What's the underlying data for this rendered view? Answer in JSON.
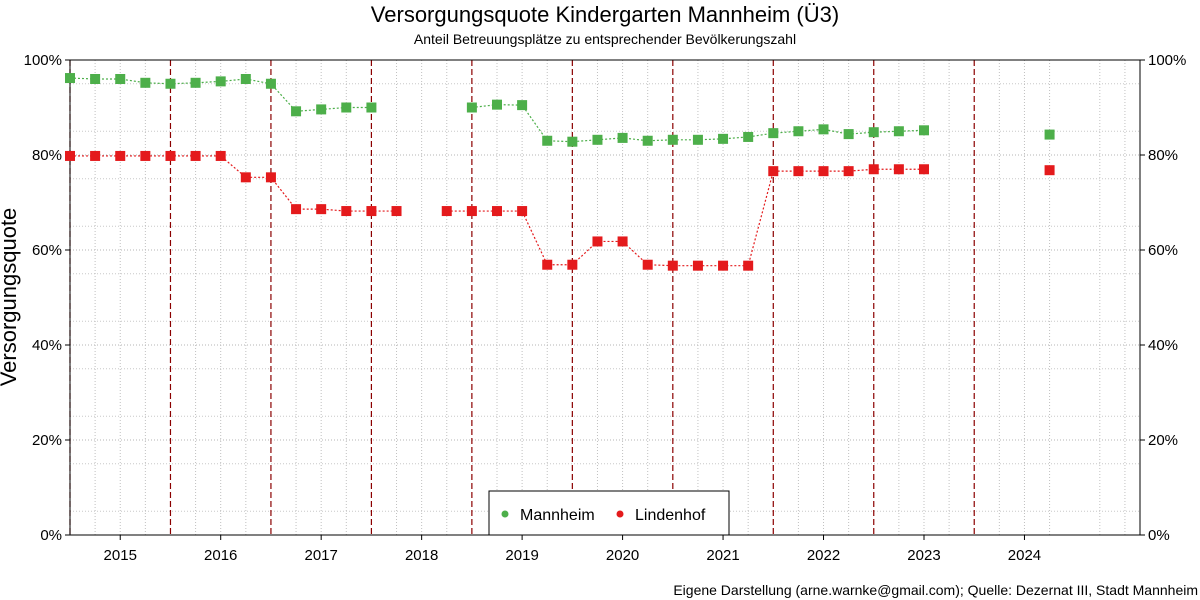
{
  "chart_data": {
    "type": "line",
    "title": "Versorgungsquote Kindergarten Mannheim (Ü3)",
    "subtitle": "Anteil Betreuungsplätze zu entsprechender Bevölkerungszahl",
    "ylabel": "Versorgungsquote",
    "xlabel": "",
    "caption": "Eigene Darstellung (arne.warnke@gmail.com); Quelle: Dezernat III, Stadt Mannheim",
    "xlim": [
      2014.5,
      2025.15
    ],
    "ylim": [
      0,
      100
    ],
    "x_ticks": [
      2015,
      2016,
      2017,
      2018,
      2019,
      2020,
      2021,
      2022,
      2023,
      2024
    ],
    "x_tick_labels": [
      "2015",
      "2016",
      "2017",
      "2018",
      "2019",
      "2020",
      "2021",
      "2022",
      "2023",
      "2024"
    ],
    "y_ticks": [
      0,
      20,
      40,
      60,
      80,
      100
    ],
    "y_tick_labels": [
      "0%",
      "20%",
      "40%",
      "60%",
      "80%",
      "100%"
    ],
    "vlines": [
      2014.5,
      2015.5,
      2016.5,
      2017.5,
      2018.5,
      2019.5,
      2020.5,
      2021.5,
      2022.5,
      2023.5
    ],
    "vline_color": "#8b0000",
    "grid": true,
    "legend_position": "bottom",
    "series": [
      {
        "name": "Mannheim",
        "color": "#4daf4a",
        "segments": [
          {
            "x": [
              2014.5,
              2014.75,
              2015.0,
              2015.25,
              2015.5,
              2015.75,
              2016.0,
              2016.25,
              2016.5,
              2016.75,
              2017.0,
              2017.25,
              2017.5
            ],
            "y": [
              96.2,
              96.0,
              96.0,
              95.2,
              95.0,
              95.2,
              95.5,
              96.0,
              95.0,
              89.2,
              89.6,
              90.0,
              90.0
            ]
          },
          {
            "x": [
              2018.5,
              2018.75,
              2019.0,
              2019.25,
              2019.5,
              2019.75,
              2020.0,
              2020.25,
              2020.5,
              2020.75,
              2021.0,
              2021.25,
              2021.5,
              2021.75,
              2022.0,
              2022.25,
              2022.5,
              2022.75,
              2023.0
            ],
            "y": [
              90.0,
              90.6,
              90.5,
              83.0,
              82.8,
              83.2,
              83.6,
              83.0,
              83.2,
              83.2,
              83.4,
              83.8,
              84.6,
              85.0,
              85.4,
              84.4,
              84.8,
              85.0,
              85.2
            ]
          },
          {
            "x": [
              2024.25
            ],
            "y": [
              84.3
            ]
          }
        ]
      },
      {
        "name": "Lindenhof",
        "color": "#e41a1c",
        "segments": [
          {
            "x": [
              2014.5,
              2014.75,
              2015.0,
              2015.25,
              2015.5,
              2015.75,
              2016.0,
              2016.25,
              2016.5,
              2016.75,
              2017.0,
              2017.25,
              2017.5,
              2017.75
            ],
            "y": [
              79.8,
              79.8,
              79.8,
              79.8,
              79.8,
              79.8,
              79.8,
              75.3,
              75.3,
              68.6,
              68.6,
              68.2,
              68.2,
              68.2
            ]
          },
          {
            "x": [
              2018.25,
              2018.5,
              2018.75,
              2019.0,
              2019.25,
              2019.5,
              2019.75,
              2020.0,
              2020.25,
              2020.5,
              2020.75,
              2021.0,
              2021.25,
              2021.5,
              2021.75,
              2022.0,
              2022.25,
              2022.5,
              2022.75,
              2023.0
            ],
            "y": [
              68.2,
              68.2,
              68.2,
              68.2,
              56.9,
              56.9,
              61.8,
              61.8,
              56.9,
              56.7,
              56.7,
              56.7,
              56.7,
              76.6,
              76.6,
              76.6,
              76.6,
              77.0,
              77.0,
              77.0
            ]
          },
          {
            "x": [
              2024.25
            ],
            "y": [
              76.8
            ]
          }
        ]
      }
    ]
  }
}
